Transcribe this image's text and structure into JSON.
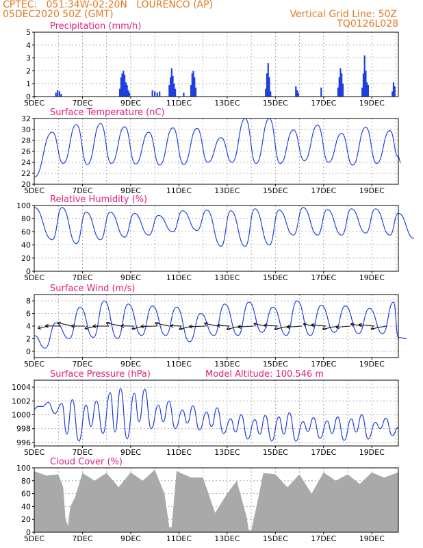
{
  "header": {
    "line1": "CPTEC:   051:34W-02:20N   LOURENCO (AP)",
    "line2": "05DEC2020 50Z (GMT)",
    "grid_note": "Vertical Grid Line: 50Z",
    "model_code": "TQ0126L028"
  },
  "colors": {
    "header": "#e07820",
    "title": "#e0207c",
    "line": "#2040e0",
    "bar": "#1f3fe0",
    "cloud": "#a9a9a9",
    "frame": "#000000",
    "grid": "#9a9a9a"
  },
  "chart_data": [
    {
      "type": "bar",
      "title": "Precipitation (mm/h)",
      "x_ticks": [
        "5DEC",
        "7DEC",
        "9DEC",
        "11DEC",
        "13DEC",
        "15DEC",
        "17DEC",
        "19DEC"
      ],
      "x_range_days": [
        5,
        20.1
      ],
      "ylim": [
        0,
        5
      ],
      "yticks": [
        0,
        1,
        2,
        3,
        4,
        5
      ],
      "grid": true,
      "points": [
        {
          "t": 5.05,
          "v": 0.05
        },
        {
          "t": 5.9,
          "v": 0.3
        },
        {
          "t": 5.97,
          "v": 0.5
        },
        {
          "t": 6.05,
          "v": 0.4
        },
        {
          "t": 6.12,
          "v": 0.2
        },
        {
          "t": 8.55,
          "v": 0.6
        },
        {
          "t": 8.6,
          "v": 1.5
        },
        {
          "t": 8.65,
          "v": 1.8
        },
        {
          "t": 8.7,
          "v": 2.0
        },
        {
          "t": 8.75,
          "v": 1.7
        },
        {
          "t": 8.8,
          "v": 1.1
        },
        {
          "t": 8.85,
          "v": 0.9
        },
        {
          "t": 8.9,
          "v": 0.5
        },
        {
          "t": 8.95,
          "v": 0.3
        },
        {
          "t": 9.9,
          "v": 0.5
        },
        {
          "t": 10.0,
          "v": 0.4
        },
        {
          "t": 10.1,
          "v": 0.3
        },
        {
          "t": 10.2,
          "v": 0.4
        },
        {
          "t": 10.6,
          "v": 0.9
        },
        {
          "t": 10.65,
          "v": 1.5
        },
        {
          "t": 10.7,
          "v": 2.2
        },
        {
          "t": 10.75,
          "v": 1.6
        },
        {
          "t": 10.8,
          "v": 1.0
        },
        {
          "t": 10.85,
          "v": 0.6
        },
        {
          "t": 11.2,
          "v": 0.3
        },
        {
          "t": 11.5,
          "v": 0.9
        },
        {
          "t": 11.55,
          "v": 1.8
        },
        {
          "t": 11.6,
          "v": 2.0
        },
        {
          "t": 11.65,
          "v": 1.5
        },
        {
          "t": 11.7,
          "v": 0.7
        },
        {
          "t": 14.6,
          "v": 0.6
        },
        {
          "t": 14.65,
          "v": 1.8
        },
        {
          "t": 14.7,
          "v": 2.6
        },
        {
          "t": 14.75,
          "v": 1.5
        },
        {
          "t": 14.8,
          "v": 0.4
        },
        {
          "t": 15.85,
          "v": 0.8
        },
        {
          "t": 15.9,
          "v": 0.5
        },
        {
          "t": 15.95,
          "v": 0.3
        },
        {
          "t": 16.9,
          "v": 0.7
        },
        {
          "t": 17.6,
          "v": 0.7
        },
        {
          "t": 17.65,
          "v": 1.5
        },
        {
          "t": 17.7,
          "v": 2.2
        },
        {
          "t": 17.75,
          "v": 1.8
        },
        {
          "t": 17.8,
          "v": 1.0
        },
        {
          "t": 18.6,
          "v": 0.7
        },
        {
          "t": 18.65,
          "v": 1.8
        },
        {
          "t": 18.7,
          "v": 3.2
        },
        {
          "t": 18.75,
          "v": 2.0
        },
        {
          "t": 18.8,
          "v": 1.1
        },
        {
          "t": 18.85,
          "v": 0.9
        },
        {
          "t": 19.85,
          "v": 0.4
        },
        {
          "t": 19.9,
          "v": 1.1
        },
        {
          "t": 19.95,
          "v": 0.8
        }
      ]
    },
    {
      "type": "line",
      "title": "Surface Temperature (nC)",
      "x_ticks": [
        "5DEC",
        "7DEC",
        "9DEC",
        "11DEC",
        "13DEC",
        "15DEC",
        "17DEC",
        "19DEC"
      ],
      "x_range_days": [
        5,
        20.1
      ],
      "ylim": [
        20,
        32
      ],
      "yticks": [
        20,
        22,
        24,
        26,
        28,
        30,
        32
      ],
      "grid": true,
      "daily_peaks": [
        29.5,
        30.9,
        31.1,
        30.5,
        29.5,
        30.3,
        30.2,
        28.5,
        32.0,
        32.0,
        29.9,
        30.8,
        29.3,
        30.4,
        29.8,
        29.7
      ],
      "daily_minima": [
        23.8,
        23.6,
        23.8,
        23.7,
        23.5,
        23.6,
        24.0,
        24.0,
        23.8,
        23.8,
        24.3,
        24.0,
        23.5,
        23.8,
        23.9
      ],
      "start_value": 21.3,
      "end_value": 25.0
    },
    {
      "type": "line",
      "title": "Relative Humidity (%)",
      "x_ticks": [
        "5DEC",
        "7DEC",
        "9DEC",
        "11DEC",
        "13DEC",
        "15DEC",
        "17DEC",
        "19DEC"
      ],
      "x_range_days": [
        5,
        20.1
      ],
      "ylim": [
        0,
        100
      ],
      "yticks": [
        0,
        20,
        40,
        60,
        80,
        100
      ],
      "grid": true,
      "daily_minima": [
        48,
        42,
        48,
        52,
        55,
        60,
        62,
        38,
        38,
        40,
        55,
        55,
        55,
        58,
        55,
        50
      ],
      "daily_maxima": [
        97,
        90,
        90,
        88,
        85,
        92,
        93,
        92,
        95,
        93,
        97,
        94,
        95,
        95,
        92
      ],
      "start_value": 97,
      "end_value": 88
    },
    {
      "type": "line",
      "title": "Surface Wind (m/s)",
      "x_ticks": [
        "5DEC",
        "7DEC",
        "9DEC",
        "11DEC",
        "13DEC",
        "15DEC",
        "17DEC",
        "19DEC"
      ],
      "x_range_days": [
        5,
        20.1
      ],
      "ylim": [
        -1,
        9
      ],
      "yticks": [
        0,
        2,
        4,
        6,
        8
      ],
      "grid": true,
      "daily_maxima": [
        4.5,
        7.0,
        8.0,
        7.5,
        7.2,
        7.0,
        6.0,
        7.5,
        7.8,
        7.0,
        8.0,
        7.3,
        7.2,
        6.8,
        7.8,
        7.5
      ],
      "daily_minima": [
        0.5,
        2.0,
        2.2,
        2.0,
        2.5,
        2.5,
        1.5,
        2.5,
        2.5,
        3.0,
        2.5,
        2.5,
        3.0,
        2.8,
        2.8,
        2.0
      ],
      "vectors_shown": true
    },
    {
      "type": "line",
      "title": "Surface Pressure (hPa)",
      "annotation": "Model Altitude: 100.546 m",
      "x_ticks": [
        "5DEC",
        "7DEC",
        "9DEC",
        "11DEC",
        "13DEC",
        "15DEC",
        "17DEC",
        "19DEC"
      ],
      "x_range_days": [
        5,
        20.1
      ],
      "ylim": [
        995.5,
        1005
      ],
      "yticks": [
        996,
        998,
        1000,
        1002,
        1004
      ],
      "grid": true,
      "daily_maxima": [
        1001.8,
        1002.2,
        1002.0,
        1003.8,
        1003.7,
        1002.0,
        1001.3,
        1001.0,
        1000.0,
        999.9,
        1000.3,
        999.6,
        999.7,
        1000.0,
        999.5
      ],
      "daily_minima": [
        1000.2,
        996.2,
        997.3,
        996.5,
        998.0,
        998.0,
        997.8,
        997.3,
        996.5,
        996.2,
        996.2,
        996.6,
        996.3,
        996.5,
        997.0,
        996.2
      ]
    },
    {
      "type": "area",
      "title": "Cloud Cover (%)",
      "x_ticks": [
        "5DEC",
        "7DEC",
        "9DEC",
        "11DEC",
        "13DEC",
        "15DEC",
        "17DEC",
        "19DEC"
      ],
      "x_range_days": [
        5,
        20.1
      ],
      "ylim": [
        0,
        100
      ],
      "yticks": [
        0,
        20,
        40,
        60,
        80,
        100
      ],
      "grid": true,
      "values": [
        {
          "t": 5.0,
          "v": 95
        },
        {
          "t": 5.5,
          "v": 88
        },
        {
          "t": 6.0,
          "v": 90
        },
        {
          "t": 6.2,
          "v": 70
        },
        {
          "t": 6.3,
          "v": 20
        },
        {
          "t": 6.4,
          "v": 10
        },
        {
          "t": 6.5,
          "v": 40
        },
        {
          "t": 6.7,
          "v": 55
        },
        {
          "t": 7.0,
          "v": 92
        },
        {
          "t": 7.5,
          "v": 80
        },
        {
          "t": 8.0,
          "v": 92
        },
        {
          "t": 8.5,
          "v": 70
        },
        {
          "t": 9.0,
          "v": 93
        },
        {
          "t": 9.5,
          "v": 80
        },
        {
          "t": 10.0,
          "v": 97
        },
        {
          "t": 10.4,
          "v": 60
        },
        {
          "t": 10.6,
          "v": 8
        },
        {
          "t": 10.7,
          "v": 8
        },
        {
          "t": 10.9,
          "v": 95
        },
        {
          "t": 11.5,
          "v": 85
        },
        {
          "t": 12.0,
          "v": 85
        },
        {
          "t": 12.5,
          "v": 30
        },
        {
          "t": 13.0,
          "v": 60
        },
        {
          "t": 13.4,
          "v": 80
        },
        {
          "t": 13.8,
          "v": 25
        },
        {
          "t": 13.9,
          "v": 3
        },
        {
          "t": 14.0,
          "v": 3
        },
        {
          "t": 14.3,
          "v": 55
        },
        {
          "t": 14.5,
          "v": 92
        },
        {
          "t": 15.0,
          "v": 90
        },
        {
          "t": 15.5,
          "v": 70
        },
        {
          "t": 16.0,
          "v": 90
        },
        {
          "t": 16.5,
          "v": 60
        },
        {
          "t": 17.0,
          "v": 93
        },
        {
          "t": 17.5,
          "v": 80
        },
        {
          "t": 18.0,
          "v": 90
        },
        {
          "t": 18.5,
          "v": 75
        },
        {
          "t": 19.0,
          "v": 93
        },
        {
          "t": 19.5,
          "v": 85
        },
        {
          "t": 20.1,
          "v": 93
        }
      ]
    }
  ]
}
